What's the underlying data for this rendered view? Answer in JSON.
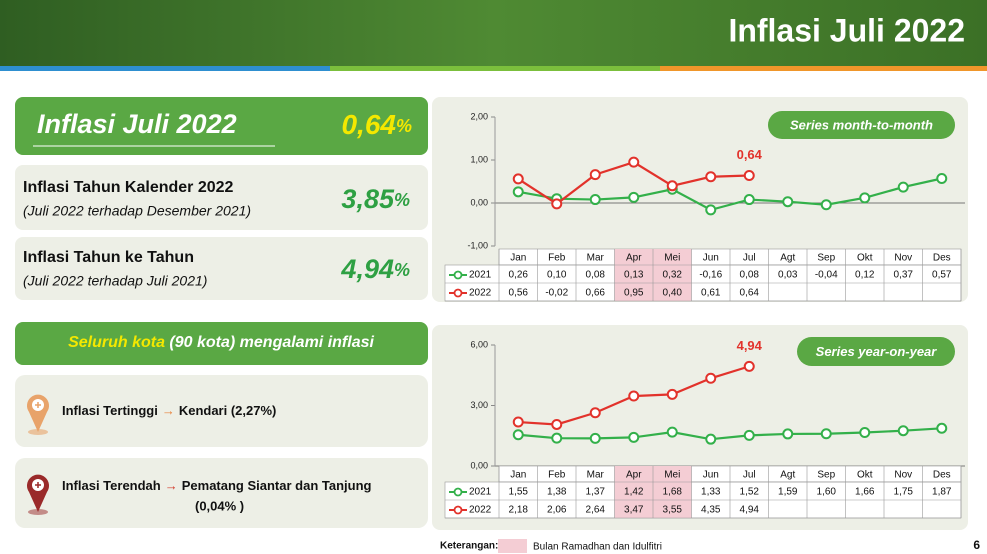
{
  "header": {
    "title": "Inflasi Juli 2022"
  },
  "summary": {
    "main": {
      "label": "Inflasi Juli 2022",
      "value": "0,64",
      "unit": "%"
    },
    "calendar": {
      "label": "Inflasi Tahun Kalender 2022",
      "note": "(Juli 2022 terhadap Desember 2021)",
      "value": "3,85",
      "unit": "%"
    },
    "yoy": {
      "label": "Inflasi Tahun ke Tahun",
      "note": "(Juli 2022 terhadap Juli 2021)",
      "value": "4,94",
      "unit": "%"
    }
  },
  "cities": {
    "banner": {
      "highlight": "Seluruh kota",
      "rest": "(90 kota) mengalami inflasi"
    },
    "highest": {
      "label": "Inflasi Tertinggi",
      "city": "Kendari (2,27%)"
    },
    "lowest": {
      "label": "Inflasi Terendah",
      "city": "Pematang Siantar dan Tanjung",
      "value": "(0,04% )"
    }
  },
  "footer": {
    "legend_title": "Keterangan:",
    "legend_text": "Bulan Ramadhan dan Idulfitri",
    "page": "6"
  },
  "chart_data": [
    {
      "type": "line",
      "title": "Series month-to-month",
      "annotation": "0,64",
      "categories": [
        "Jan",
        "Feb",
        "Mar",
        "Apr",
        "Mei",
        "Jun",
        "Jul",
        "Agt",
        "Sep",
        "Okt",
        "Nov",
        "Des"
      ],
      "highlight_categories": [
        3,
        4
      ],
      "highlight_color": "#f4cdd4",
      "ylim": [
        -1,
        2
      ],
      "yticks": [
        {
          "value": -1,
          "label": "-1,00"
        },
        {
          "value": 0,
          "label": "0,00"
        },
        {
          "value": 1,
          "label": "1,00"
        },
        {
          "value": 2,
          "label": "2,00"
        }
      ],
      "grid": false,
      "series": [
        {
          "name": "2021",
          "color": "#33b04a",
          "values": [
            0.26,
            0.1,
            0.08,
            0.13,
            0.32,
            -0.16,
            0.08,
            0.03,
            -0.04,
            0.12,
            0.37,
            0.57
          ],
          "value_labels": [
            "0,26",
            "0,10",
            "0,08",
            "0,13",
            "0,32",
            "-0,16",
            "0,08",
            "0,03",
            "-0,04",
            "0,12",
            "0,37",
            "0,57"
          ]
        },
        {
          "name": "2022",
          "color": "#e2322b",
          "values": [
            0.56,
            -0.02,
            0.66,
            0.95,
            0.4,
            0.61,
            0.64,
            null,
            null,
            null,
            null,
            null
          ],
          "value_labels": [
            "0,56",
            "-0,02",
            "0,66",
            "0,95",
            "0,40",
            "0,61",
            "0,64",
            null,
            null,
            null,
            null,
            null
          ]
        }
      ]
    },
    {
      "type": "line",
      "title": "Series year-on-year",
      "annotation": "4,94",
      "categories": [
        "Jan",
        "Feb",
        "Mar",
        "Apr",
        "Mei",
        "Jun",
        "Jul",
        "Agt",
        "Sep",
        "Okt",
        "Nov",
        "Des"
      ],
      "highlight_categories": [
        3,
        4
      ],
      "highlight_color": "#f4cdd4",
      "ylim": [
        0,
        6
      ],
      "yticks": [
        {
          "value": 0,
          "label": "0,00"
        },
        {
          "value": 3,
          "label": "3,00"
        },
        {
          "value": 6,
          "label": "6,00"
        }
      ],
      "grid": false,
      "series": [
        {
          "name": "2021",
          "color": "#33b04a",
          "values": [
            1.55,
            1.38,
            1.37,
            1.42,
            1.68,
            1.33,
            1.52,
            1.59,
            1.6,
            1.66,
            1.75,
            1.87
          ],
          "value_labels": [
            "1,55",
            "1,38",
            "1,37",
            "1,42",
            "1,68",
            "1,33",
            "1,52",
            "1,59",
            "1,60",
            "1,66",
            "1,75",
            "1,87"
          ]
        },
        {
          "name": "2022",
          "color": "#e2322b",
          "values": [
            2.18,
            2.06,
            2.64,
            3.47,
            3.55,
            4.35,
            4.94,
            null,
            null,
            null,
            null,
            null
          ],
          "value_labels": [
            "2,18",
            "2,06",
            "2,64",
            "3,47",
            "3,55",
            "4,35",
            "4,94",
            null,
            null,
            null,
            null,
            null
          ]
        }
      ]
    }
  ]
}
